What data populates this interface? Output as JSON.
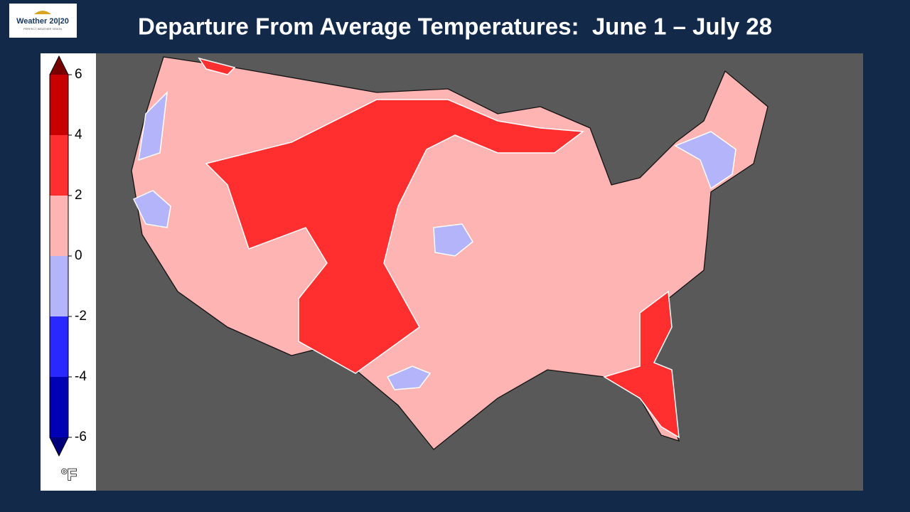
{
  "header": {
    "logo": {
      "name": "Weather 20|20",
      "tagline": "PERFECT WEATHER VISION"
    },
    "title": "Departure From Average Temperatures:  June 1 – July 28"
  },
  "colorbar": {
    "lim": [
      -6,
      6
    ],
    "ticks": [
      6,
      4,
      2,
      0,
      -2,
      -4,
      -6
    ],
    "unit": "°F",
    "bands": [
      {
        "from": -6,
        "to": -4,
        "color": "#0000b4"
      },
      {
        "from": -4,
        "to": -2,
        "color": "#2828ff"
      },
      {
        "from": -2,
        "to": 0,
        "color": "#b4b4fa"
      },
      {
        "from": 0,
        "to": 2,
        "color": "#ffb4b4"
      },
      {
        "from": 2,
        "to": 4,
        "color": "#ff2f2f"
      },
      {
        "from": 4,
        "to": 6,
        "color": "#c80000"
      }
    ],
    "extend_colors": {
      "low": "#00007a",
      "high": "#780000"
    }
  }
}
